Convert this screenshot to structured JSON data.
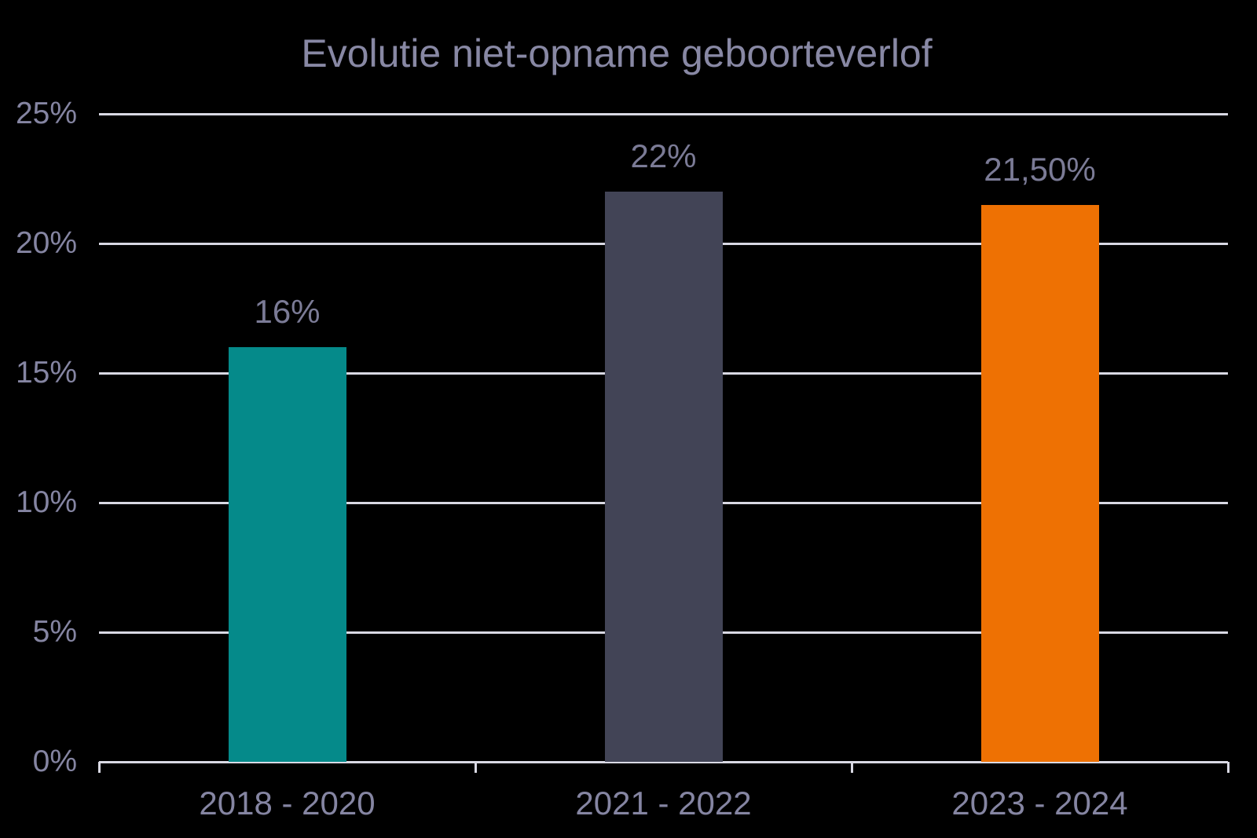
{
  "chart_data": {
    "type": "bar",
    "title": "Evolutie niet-opname geboorteverlof",
    "categories": [
      "2018 - 2020",
      "2021 - 2022",
      "2023 - 2024"
    ],
    "values": [
      16,
      22,
      21.5
    ],
    "value_labels": [
      "16%",
      "22%",
      "21,50%"
    ],
    "bar_colors": [
      "#058A8A",
      "#424456",
      "#EE7103"
    ],
    "xlabel": "",
    "ylabel": "",
    "ylim": [
      0,
      25
    ],
    "y_ticks": [
      {
        "value": 25,
        "label": "25%"
      },
      {
        "value": 20,
        "label": "20%"
      },
      {
        "value": 15,
        "label": "15%"
      },
      {
        "value": 10,
        "label": "10%"
      },
      {
        "value": 5,
        "label": "5%"
      },
      {
        "value": 0,
        "label": "0%"
      }
    ],
    "grid": true,
    "legend_position": "none",
    "colors": {
      "background": "#000000",
      "title_text": "#8888A4",
      "axis_text": "#8585A2",
      "data_label_text": "#7B7B96",
      "gridline": "#D9D9E4"
    }
  }
}
